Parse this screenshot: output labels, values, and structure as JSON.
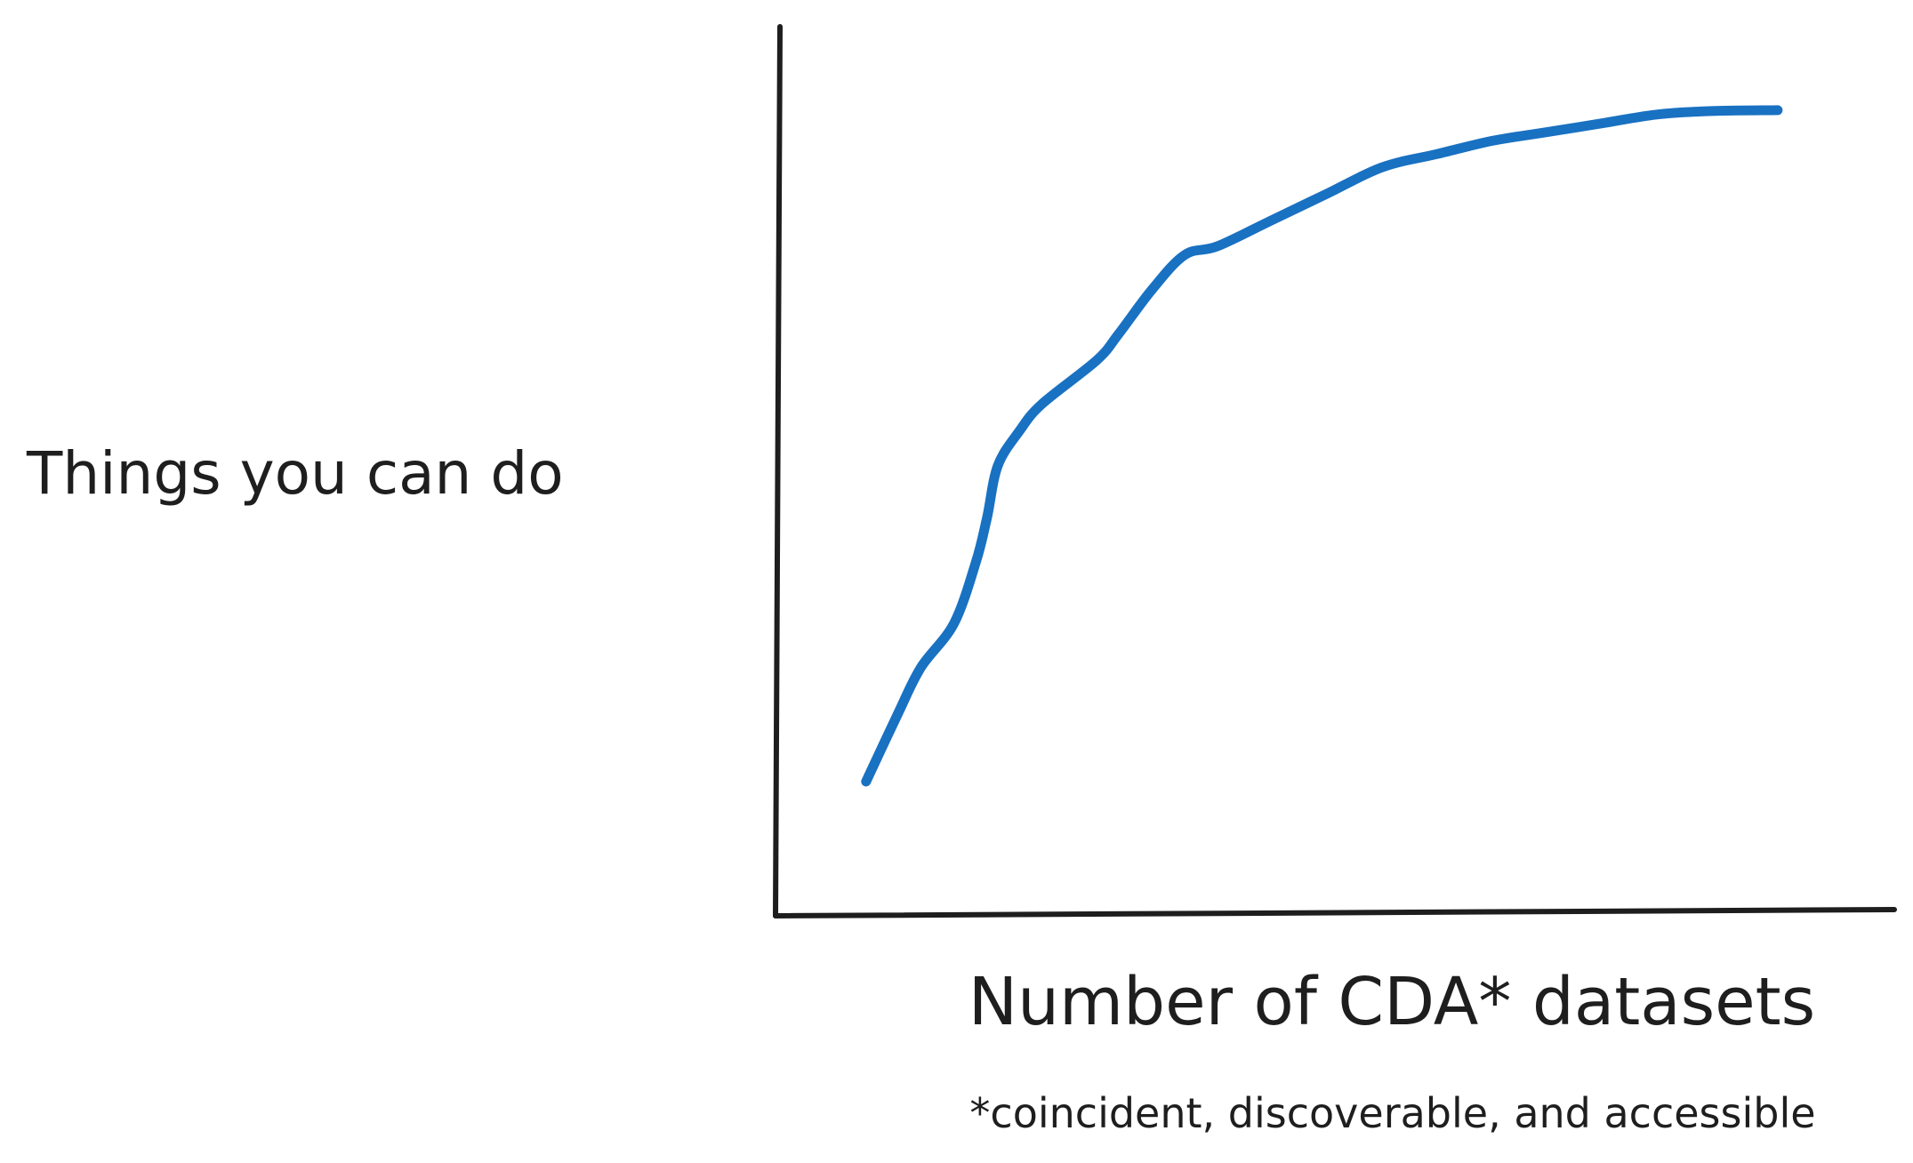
{
  "chart_data": {
    "type": "line",
    "title": "",
    "xlabel": "Number of CDA* datasets",
    "ylabel": "Things you can do",
    "footnote": "*coincident, discoverable, and accessible",
    "grid": false,
    "legend": "none",
    "xlim": [
      0,
      100
    ],
    "ylim": [
      0,
      100
    ],
    "series": [
      {
        "color": "#1971c2",
        "points": [
          [
            8,
            15
          ],
          [
            11,
            23
          ],
          [
            13,
            28
          ],
          [
            16,
            33
          ],
          [
            18,
            40
          ],
          [
            19,
            45
          ],
          [
            20,
            51
          ],
          [
            22,
            55
          ],
          [
            24,
            58
          ],
          [
            29,
            63
          ],
          [
            31,
            66
          ],
          [
            34,
            71
          ],
          [
            37,
            75
          ],
          [
            40,
            76
          ],
          [
            45,
            79
          ],
          [
            50,
            82
          ],
          [
            55,
            85
          ],
          [
            60,
            86.5
          ],
          [
            65,
            88
          ],
          [
            70,
            89
          ],
          [
            75,
            90
          ],
          [
            80,
            91
          ],
          [
            85,
            91.4
          ],
          [
            91,
            91.5
          ]
        ]
      }
    ]
  }
}
